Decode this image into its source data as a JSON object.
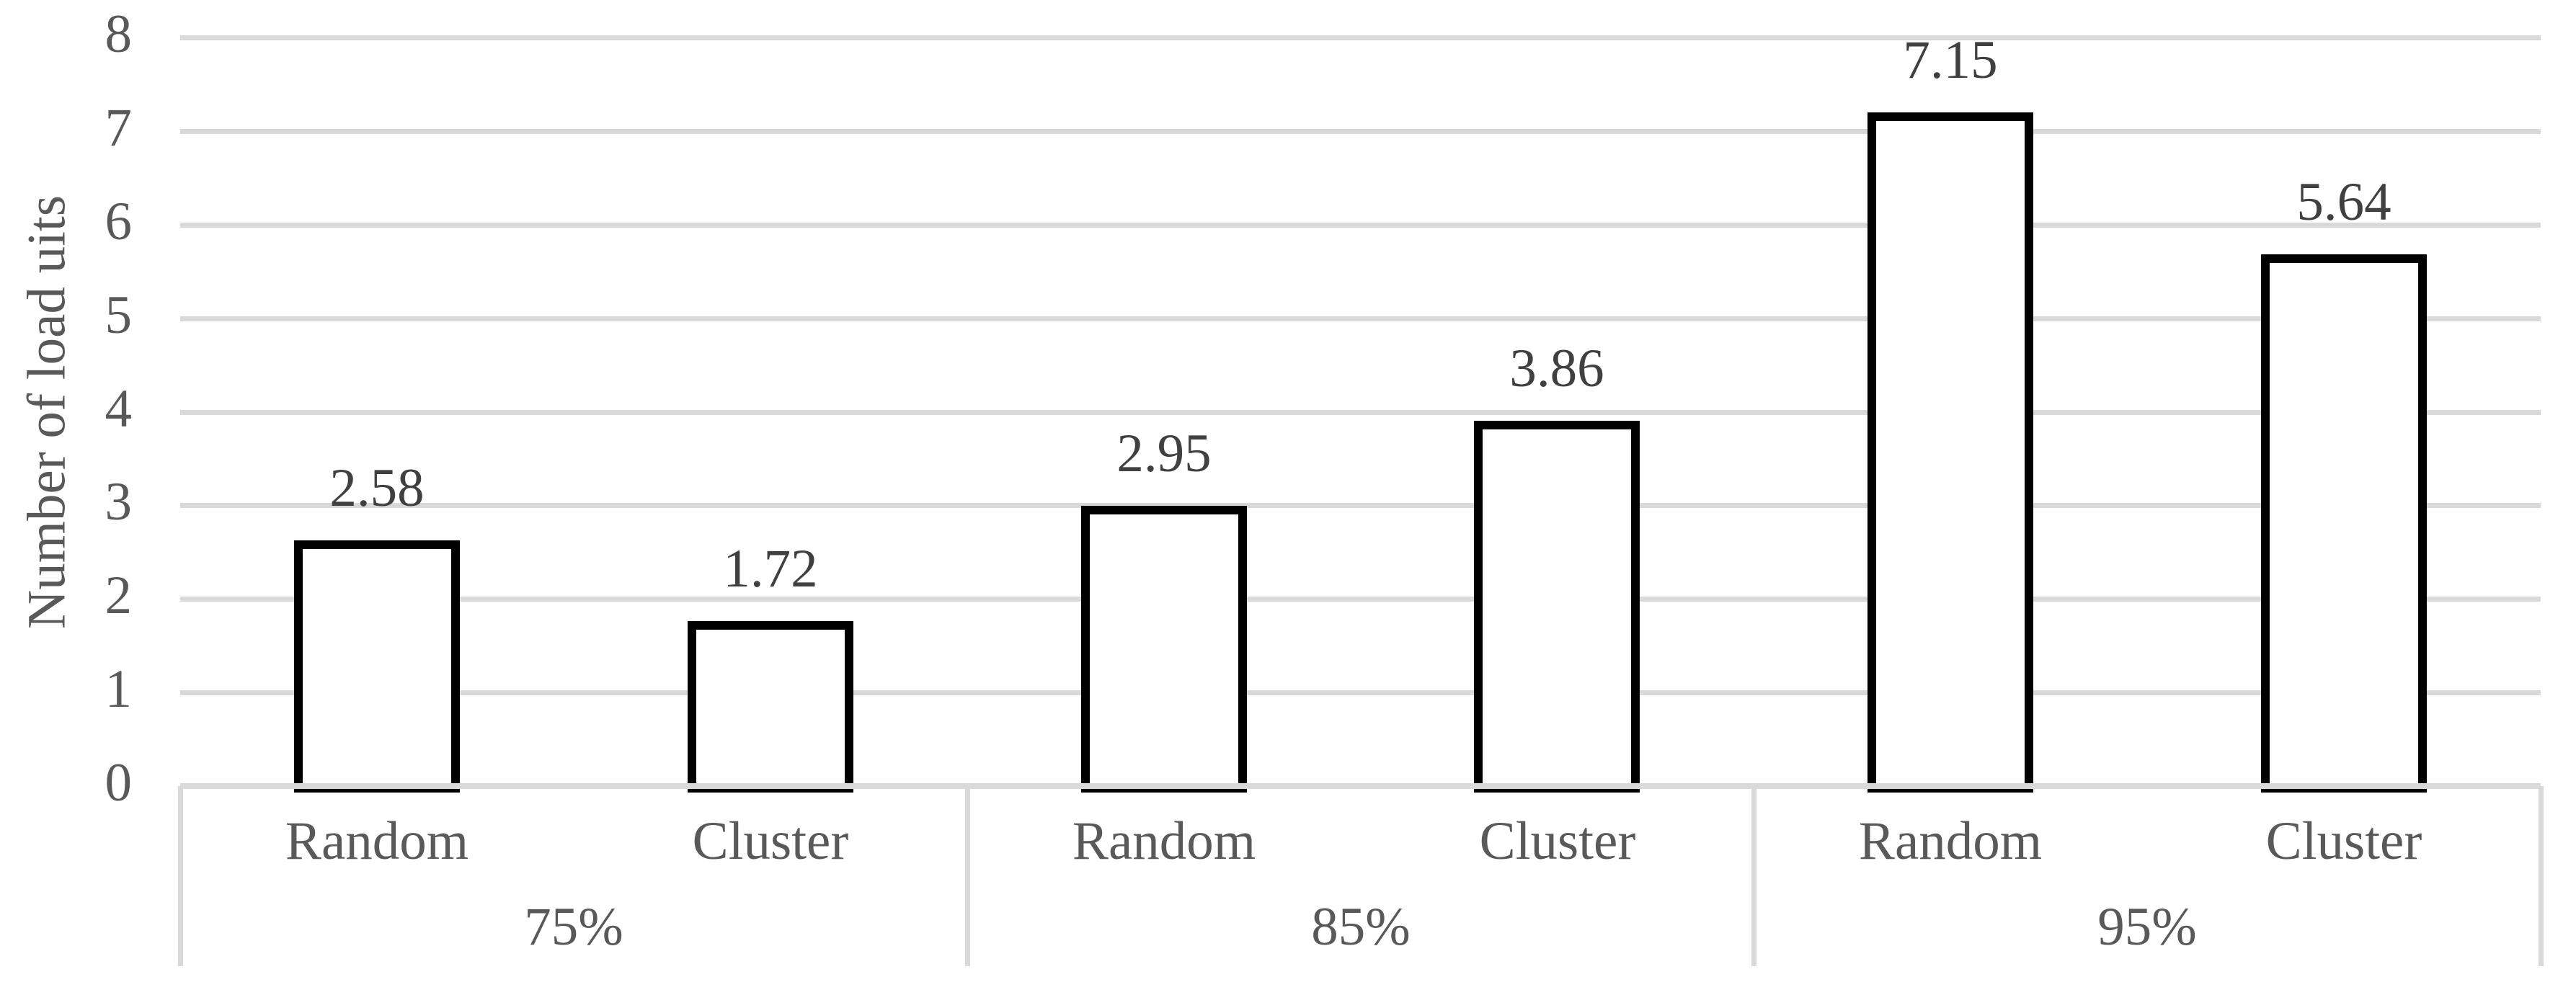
{
  "chart_data": {
    "type": "bar",
    "title": "",
    "xlabel": "",
    "ylabel": "Number of load uits",
    "ylim": [
      0,
      8
    ],
    "ytick_interval": 1,
    "ytick_labels": [
      "0",
      "1",
      "2",
      "3",
      "4",
      "5",
      "6",
      "7",
      "8"
    ],
    "grid": true,
    "legend": "none",
    "bar_categories": [
      "Random",
      "Cluster"
    ],
    "group_labels": [
      "75%",
      "85%",
      "95%"
    ],
    "groups": [
      {
        "label": "75%",
        "bars": [
          {
            "category": "Random",
            "value": 2.58,
            "label": "2.58"
          },
          {
            "category": "Cluster",
            "value": 1.72,
            "label": "1.72"
          }
        ]
      },
      {
        "label": "85%",
        "bars": [
          {
            "category": "Random",
            "value": 2.95,
            "label": "2.95"
          },
          {
            "category": "Cluster",
            "value": 3.86,
            "label": "3.86"
          }
        ]
      },
      {
        "label": "95%",
        "bars": [
          {
            "category": "Random",
            "value": 7.15,
            "label": "7.15"
          },
          {
            "category": "Cluster",
            "value": 5.64,
            "label": "5.64"
          }
        ]
      }
    ]
  },
  "colors": {
    "gridline": "#D9D9D9",
    "axis_line": "#D9D9D9",
    "axis_text": "#595959",
    "data_label_text": "#404040",
    "bar_fill": "#FFFFFF",
    "bar_border": "#000000",
    "background": "#FFFFFF"
  }
}
